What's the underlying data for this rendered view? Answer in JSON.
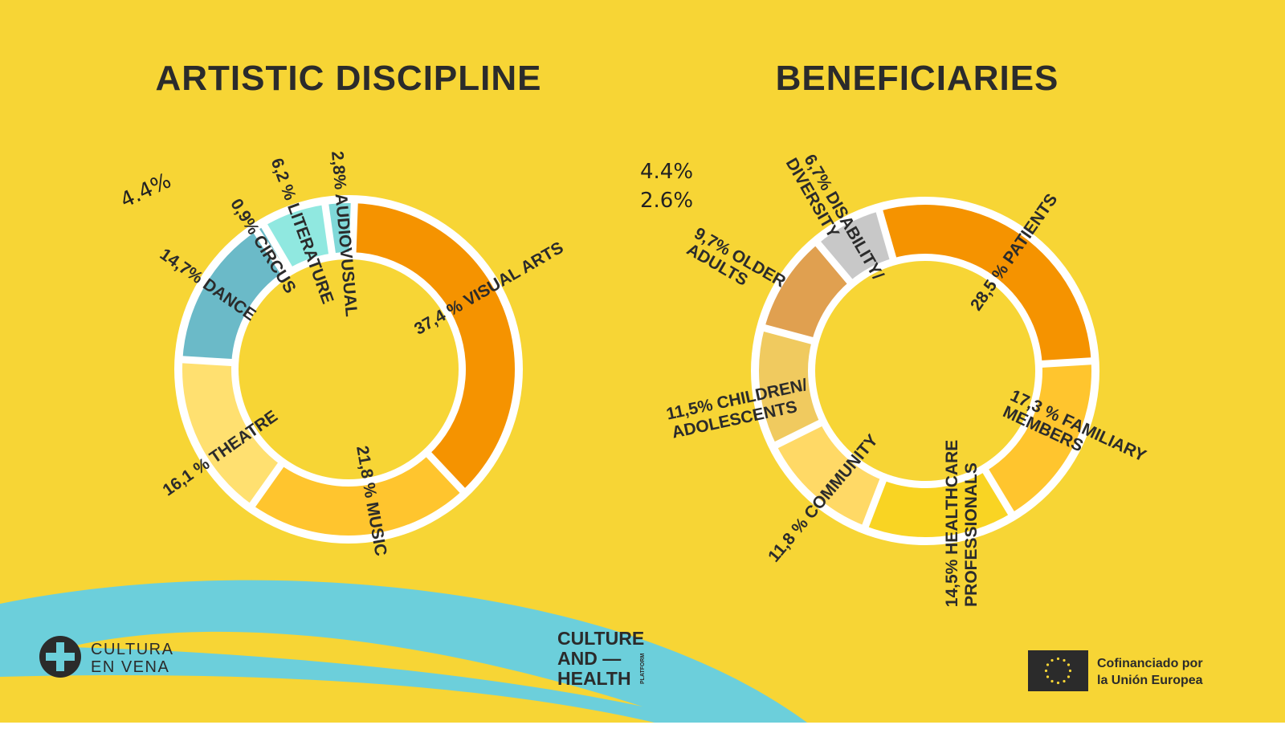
{
  "chart_data": [
    {
      "type": "pie",
      "title": "ARTISTIC DISCIPLINE",
      "unit": "%",
      "categories": [
        "VISUAL ARTS",
        "MUSIC",
        "THEATRE",
        "DANCE",
        "CIRCUS",
        "LITERATURE",
        "AUDIOVUSUAL"
      ],
      "values": [
        37.4,
        21.8,
        16.1,
        14.7,
        0.9,
        6.2,
        2.8
      ],
      "labels": [
        "37,4 % VISUAL ARTS",
        "21,8 % MUSIC",
        "16,1 % THEATRE",
        "14,7% DANCE",
        "0,9% CIRCUS",
        "6,2 % LITERATURE",
        "2,8% AUDIOVUSUAL"
      ],
      "colors": [
        "#F59300",
        "#FFC52E",
        "#FFE070",
        "#6BBAC8",
        "#6BBAC8",
        "#90E8E0",
        "#7FD8D8"
      ],
      "stray_labels": [
        "4.4%"
      ]
    },
    {
      "type": "pie",
      "title": "BENEFICIARIES",
      "unit": "%",
      "categories": [
        "PATIENTS",
        "FAMILIARY MEMBERS",
        "HEALTHCARE PROFESSIONALS",
        "COMMUNITY",
        "CHILDREN/ ADOLESCENTS",
        "OLDER ADULTS",
        "DISABILITY/ DIVERSITY"
      ],
      "values": [
        28.5,
        17.3,
        14.5,
        11.8,
        11.5,
        9.7,
        6.7
      ],
      "labels": [
        [
          "28,5 % PATIENTS"
        ],
        [
          "17,3 % FAMILIARY",
          "MEMBERS"
        ],
        [
          "14,5% HEALTHCARE",
          "PROFESSIONALS"
        ],
        [
          "11,8 % COMMUNITY"
        ],
        [
          "11,5% CHILDREN/",
          "ADOLESCENTS"
        ],
        [
          "9,7% OLDER",
          "ADULTS"
        ],
        [
          "6,7% DISABILITY/",
          "DIVERSITY"
        ]
      ],
      "colors": [
        "#F59300",
        "#FFC52E",
        "#F9D423",
        "#FFD966",
        "#F0CA5F",
        "#E0A050",
        "#C8C8C8"
      ],
      "stray_labels": [
        "4.4%",
        "2.6%"
      ]
    }
  ],
  "logos": {
    "cultura_en_vena": [
      "CULTURA",
      "EN VENA"
    ],
    "culture_and_health": [
      "CULTURE",
      "AND —",
      "HEALTH",
      "PLATFORM"
    ],
    "eu": [
      "Cofinanciado por",
      "la Unión Europea"
    ]
  },
  "colors": {
    "background": "#F7D535",
    "swoosh": "#6CCFDB",
    "text": "#2b2b2b"
  }
}
